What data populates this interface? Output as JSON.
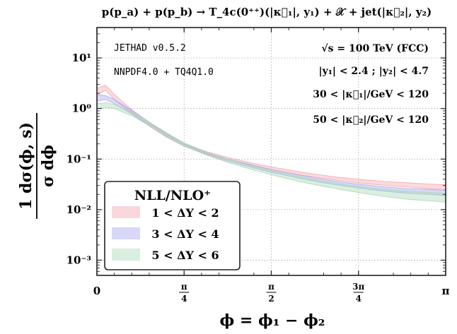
{
  "chart_data": {
    "type": "area",
    "title": "p(p_a) + p(p_b) → T_4c(0⁺⁺)(|κ⃗₁|, y₁) + 𝒳 + jet(|κ⃗₂|, y₂)",
    "xlabel": "ϕ = ϕ₁ − ϕ₂",
    "ylabel_num": "1 dσ(ϕ, s)",
    "ylabel_den": "σ   dϕ",
    "yscale": "log",
    "ylim": [
      0.0005,
      40
    ],
    "xlim": [
      0,
      3.14159
    ],
    "grid": true,
    "x_ticks": [
      {
        "value": 0,
        "label": "0",
        "frac": false
      },
      {
        "value": 0.785398,
        "num": "π",
        "den": "4",
        "frac": true
      },
      {
        "value": 1.570796,
        "num": "π",
        "den": "2",
        "frac": true
      },
      {
        "value": 2.356194,
        "num": "3π",
        "den": "4",
        "frac": true
      },
      {
        "value": 3.14159,
        "label": "π",
        "frac": false
      }
    ],
    "y_ticks": [
      {
        "value": 10,
        "label": "10¹"
      },
      {
        "value": 1,
        "label": "10⁰"
      },
      {
        "value": 0.1,
        "label": "10⁻¹"
      },
      {
        "value": 0.01,
        "label": "10⁻²"
      },
      {
        "value": 0.001,
        "label": "10⁻³"
      }
    ],
    "annotations": {
      "code": "JETHAD v0.5.2",
      "pdf": "NNPDF4.0 + TQ4Q1.0",
      "energy": "√s = 100 TeV (FCC)",
      "rapidity": "|y₁| < 2.4 ;   |y₂| < 4.7",
      "kappa1": "30 < |κ⃗₁|/GeV < 120",
      "kappa2": "50 < |κ⃗₂|/GeV < 120"
    },
    "legend": {
      "title": "NLL/NLO⁺",
      "placement": "lower-left"
    },
    "x": [
      0,
      0.0785,
      0.157,
      0.314,
      0.471,
      0.628,
      0.785,
      1.0,
      1.2,
      1.4,
      1.571,
      1.8,
      2.0,
      2.2,
      2.4,
      2.6,
      2.8,
      3.0,
      3.1416
    ],
    "series": [
      {
        "name": "1 < ΔY < 2",
        "color": "#f2a7ad",
        "lower": [
          1.9,
          2.3,
          1.5,
          0.8,
          0.45,
          0.27,
          0.18,
          0.125,
          0.095,
          0.075,
          0.062,
          0.05,
          0.043,
          0.037,
          0.033,
          0.03,
          0.028,
          0.026,
          0.025
        ],
        "upper": [
          2.5,
          2.9,
          1.9,
          0.95,
          0.52,
          0.31,
          0.2,
          0.138,
          0.105,
          0.083,
          0.07,
          0.057,
          0.049,
          0.043,
          0.039,
          0.036,
          0.034,
          0.032,
          0.031
        ]
      },
      {
        "name": "3 < ΔY < 4",
        "color": "#a8a7ef",
        "lower": [
          1.4,
          1.5,
          1.25,
          0.78,
          0.46,
          0.28,
          0.18,
          0.12,
          0.088,
          0.068,
          0.055,
          0.043,
          0.035,
          0.03,
          0.026,
          0.023,
          0.021,
          0.02,
          0.019
        ],
        "upper": [
          1.9,
          1.8,
          1.5,
          0.92,
          0.54,
          0.32,
          0.2,
          0.133,
          0.097,
          0.076,
          0.062,
          0.049,
          0.041,
          0.035,
          0.031,
          0.028,
          0.026,
          0.025,
          0.024
        ]
      },
      {
        "name": "5 < ΔY < 6",
        "color": "#a9d9b5",
        "lower": [
          1.0,
          1.05,
          1.0,
          0.72,
          0.46,
          0.28,
          0.18,
          0.117,
          0.083,
          0.062,
          0.049,
          0.037,
          0.03,
          0.025,
          0.021,
          0.018,
          0.016,
          0.015,
          0.014
        ],
        "upper": [
          1.25,
          1.3,
          1.2,
          0.85,
          0.54,
          0.33,
          0.21,
          0.133,
          0.096,
          0.073,
          0.059,
          0.046,
          0.038,
          0.032,
          0.028,
          0.025,
          0.023,
          0.022,
          0.021
        ]
      }
    ]
  }
}
